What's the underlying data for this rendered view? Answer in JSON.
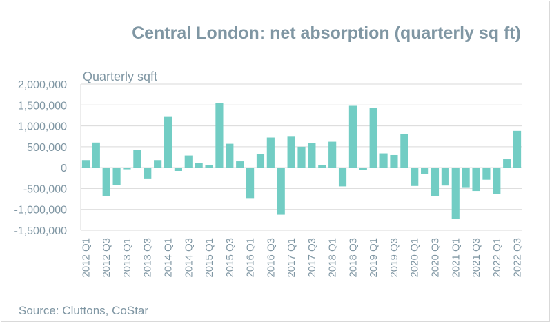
{
  "chart_data": {
    "type": "bar",
    "title": "Central London: net absorption (quarterly sq ft)",
    "unit_label": "Quarterly sqft",
    "source": "Source: Cluttons, CoStar",
    "ylim": [
      -1500000,
      2000000
    ],
    "yticks": [
      "2,000,000",
      "1,500,000",
      "1,000,000",
      "500,000",
      "0",
      "-500,000",
      "-1,000,000",
      "-1,500,000"
    ],
    "ytick_values": [
      2000000,
      1500000,
      1000000,
      500000,
      0,
      -500000,
      -1000000,
      -1500000
    ],
    "grid": true,
    "bar_color": "#72cdc4",
    "xtick_labels": [
      "2012 Q1",
      "2012 Q3",
      "2013 Q1",
      "2013 Q3",
      "2014 Q1",
      "2014 Q3",
      "2015 Q1",
      "2015 Q3",
      "2016 Q1",
      "2016 Q3",
      "2017 Q1",
      "2017 Q3",
      "2018 Q1",
      "2018 Q3",
      "2019 Q1",
      "2019 Q3",
      "2020 Q1",
      "2020 Q3",
      "2021 Q1",
      "2021 Q3",
      "2022 Q1",
      "2022 Q3"
    ],
    "categories": [
      "2012 Q1",
      "2012 Q2",
      "2012 Q3",
      "2012 Q4",
      "2013 Q1",
      "2013 Q2",
      "2013 Q3",
      "2013 Q4",
      "2014 Q1",
      "2014 Q2",
      "2014 Q3",
      "2014 Q4",
      "2015 Q1",
      "2015 Q2",
      "2015 Q3",
      "2015 Q4",
      "2016 Q1",
      "2016 Q2",
      "2016 Q3",
      "2016 Q4",
      "2017 Q1",
      "2017 Q2",
      "2017 Q3",
      "2017 Q4",
      "2018 Q1",
      "2018 Q2",
      "2018 Q3",
      "2018 Q4",
      "2019 Q1",
      "2019 Q2",
      "2019 Q3",
      "2019 Q4",
      "2020 Q1",
      "2020 Q2",
      "2020 Q3",
      "2020 Q4",
      "2021 Q1",
      "2021 Q2",
      "2021 Q3",
      "2021 Q4",
      "2022 Q1",
      "2022 Q2",
      "2022 Q3"
    ],
    "values": [
      180000,
      600000,
      -680000,
      -420000,
      -40000,
      420000,
      -260000,
      180000,
      1230000,
      -80000,
      290000,
      110000,
      60000,
      1540000,
      570000,
      150000,
      -730000,
      320000,
      720000,
      -1130000,
      740000,
      500000,
      580000,
      60000,
      620000,
      -450000,
      1480000,
      -60000,
      1430000,
      340000,
      300000,
      810000,
      -440000,
      -150000,
      -680000,
      -430000,
      -1230000,
      -470000,
      -560000,
      -290000,
      -640000,
      200000,
      880000
    ]
  }
}
